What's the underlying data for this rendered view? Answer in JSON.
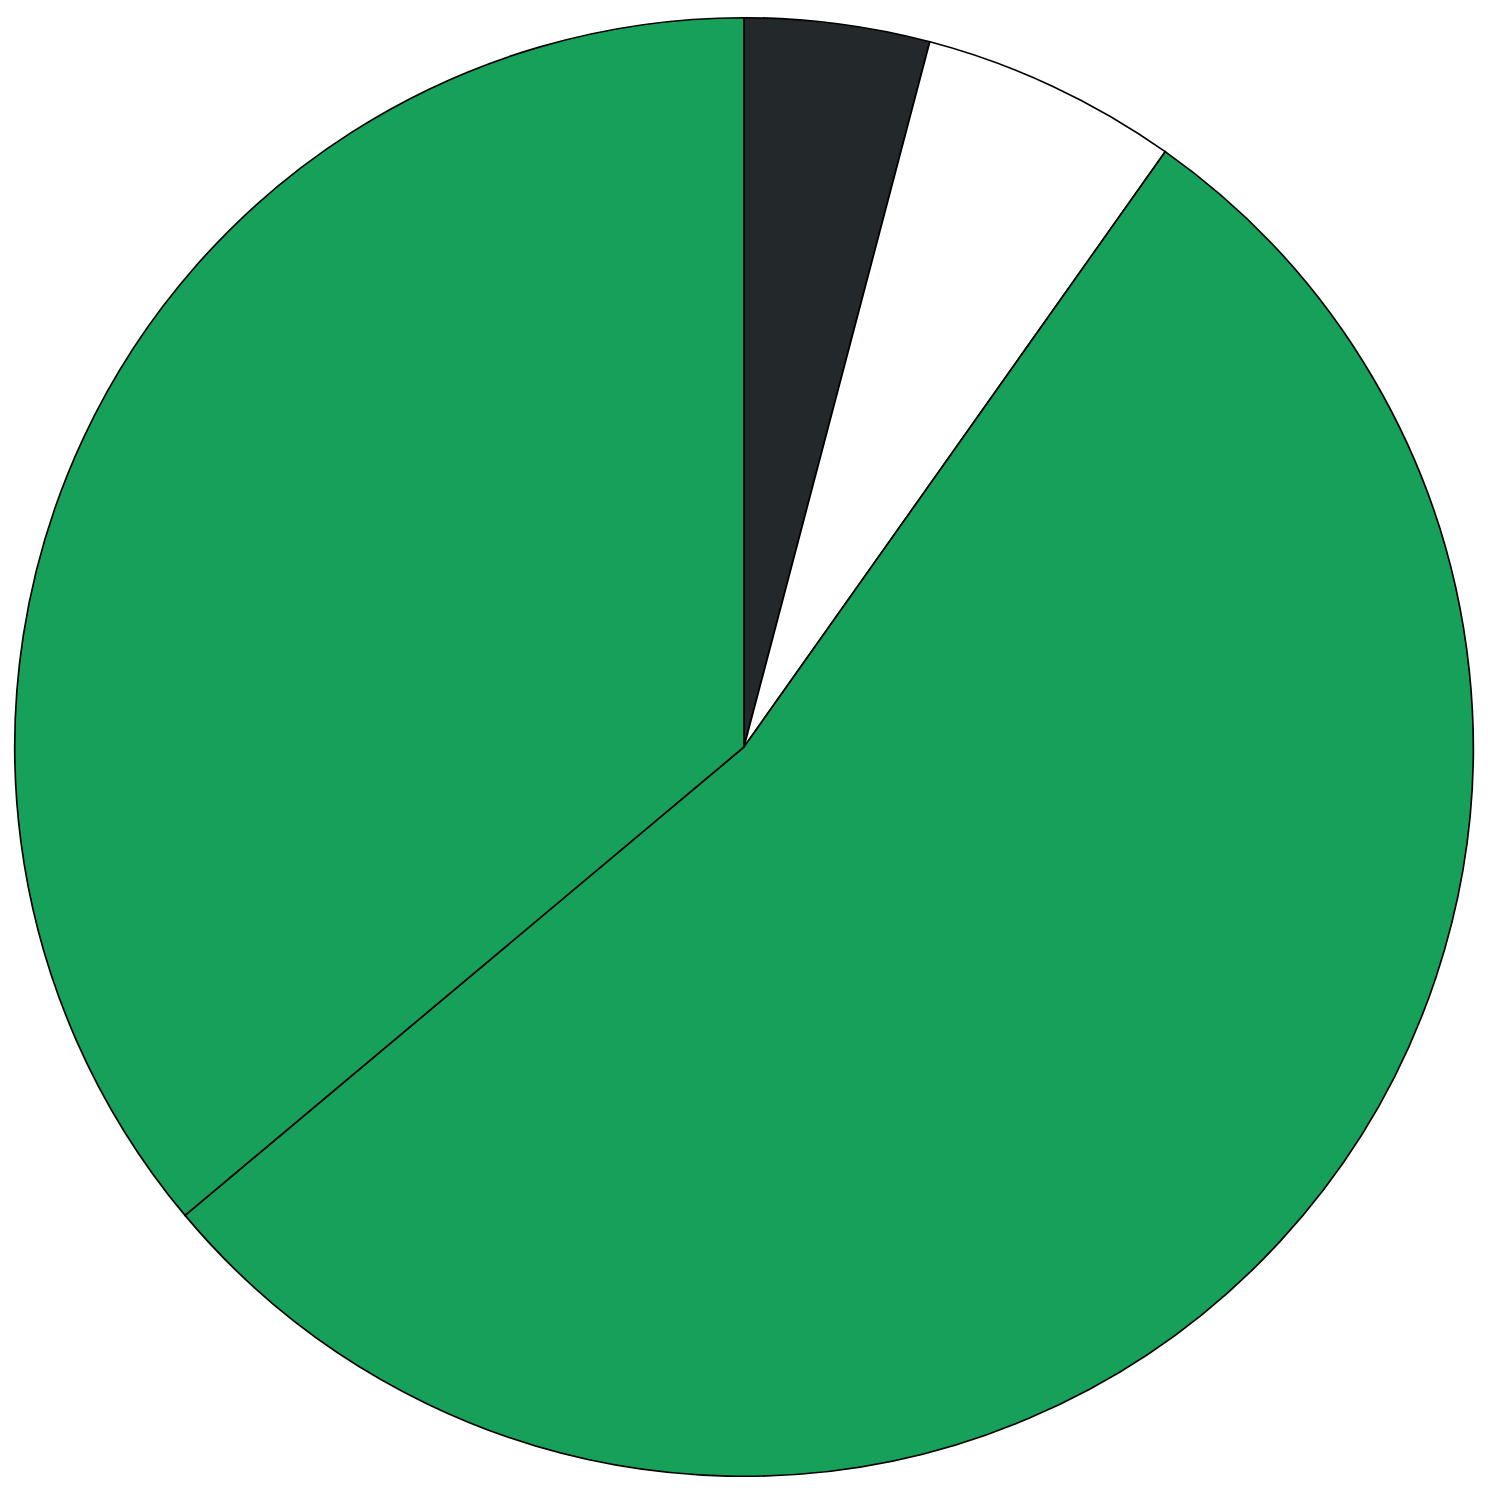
{
  "chart_data": {
    "type": "pie",
    "categories": [
      null,
      null,
      null,
      null
    ],
    "values": [
      4.1,
      5.7,
      54.1,
      36.1
    ],
    "colors": [
      "#23282a",
      "#ffffff",
      "#17a05a",
      "#17a05a"
    ]
  }
}
